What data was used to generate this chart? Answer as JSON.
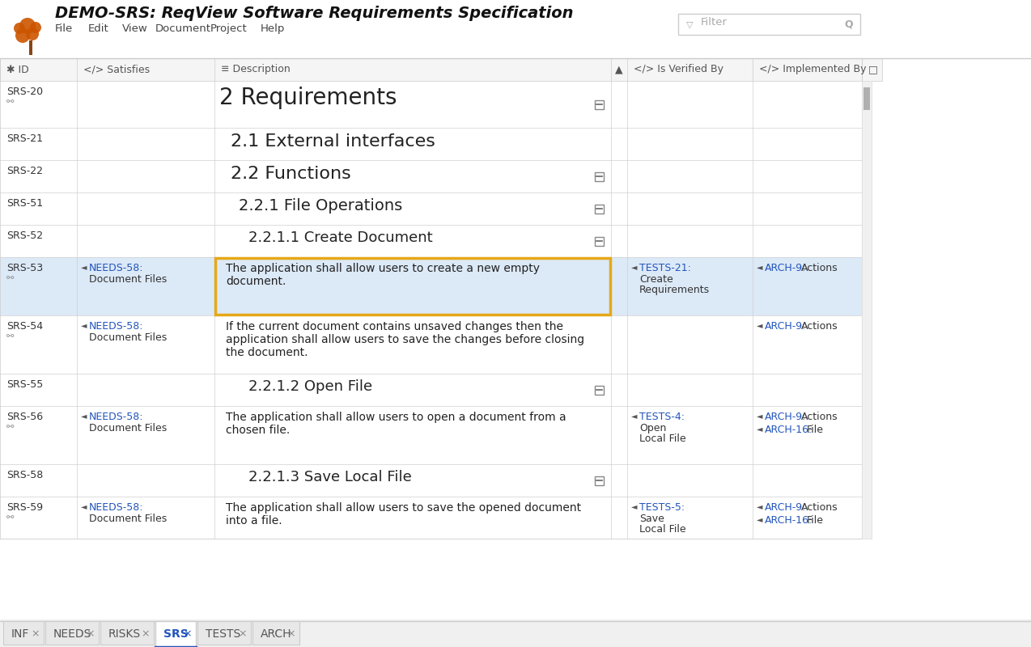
{
  "title": "DEMO-SRS: ReqView Software Requirements Specification",
  "menu_items": [
    "File",
    "Edit",
    "View",
    "Document",
    "Project",
    "Help"
  ],
  "filter_placeholder": "Filter",
  "bg_color": "#ffffff",
  "selected_row_bg": "#dce9f7",
  "selected_cell_border": "#e6a817",
  "grid_color": "#d0d0d0",
  "link_color": "#2255bb",
  "tab_active_color": "#2255bb",
  "orange_color": "#cc5500",
  "header_text_color": "#555555",
  "body_text_color": "#333333",
  "col_starts": [
    0,
    95,
    265,
    755,
    775,
    930,
    1065
  ],
  "col_ends": [
    95,
    265,
    755,
    775,
    930,
    1065,
    1090
  ],
  "header_labels": [
    "✱ ID",
    "</> Satisfies",
    "≡ Description",
    "▲",
    "</> Is Verified By",
    "</> Implemented By",
    "□"
  ],
  "rows": [
    {
      "id": "SRS-20",
      "has_link": true,
      "satisfies": "",
      "satisfies_link": "",
      "description": "2 Requirements",
      "desc_size": "h1",
      "has_collapse": true,
      "verified_by": "",
      "verified_link": "",
      "implemented_by": "",
      "bg": "#ffffff"
    },
    {
      "id": "SRS-21",
      "has_link": false,
      "satisfies": "",
      "satisfies_link": "",
      "description": "2.1 External interfaces",
      "desc_size": "h2",
      "has_collapse": false,
      "verified_by": "",
      "verified_link": "",
      "implemented_by": "",
      "bg": "#ffffff"
    },
    {
      "id": "SRS-22",
      "has_link": false,
      "satisfies": "",
      "satisfies_link": "",
      "description": "2.2 Functions",
      "desc_size": "h2",
      "has_collapse": true,
      "verified_by": "",
      "verified_link": "",
      "implemented_by": "",
      "bg": "#ffffff"
    },
    {
      "id": "SRS-51",
      "has_link": false,
      "satisfies": "",
      "satisfies_link": "",
      "description": "2.2.1 File Operations",
      "desc_size": "h3",
      "has_collapse": true,
      "verified_by": "",
      "verified_link": "",
      "implemented_by": "",
      "bg": "#ffffff"
    },
    {
      "id": "SRS-52",
      "has_link": false,
      "satisfies": "",
      "satisfies_link": "",
      "description": "2.2.1.1 Create Document",
      "desc_size": "h4",
      "has_collapse": true,
      "verified_by": "",
      "verified_link": "",
      "implemented_by": "",
      "bg": "#ffffff"
    },
    {
      "id": "SRS-53",
      "has_link": true,
      "satisfies": "NEEDS-58",
      "satisfies_link": "NEEDS-58",
      "satisfies_suffix": "Document Files",
      "description": "The application shall allow users to create a new empty\ndocument.",
      "desc_size": "normal",
      "has_collapse": false,
      "selected": true,
      "selected_cell": true,
      "verified_by": "TESTS-21",
      "verified_link": "TESTS-21",
      "verified_suffix": "Create\nRequirements",
      "implemented_by_lines": [
        [
          "ARCH-9",
          "Actions"
        ]
      ],
      "bg": "#dce9f7"
    },
    {
      "id": "SRS-54",
      "has_link": true,
      "satisfies": "NEEDS-58",
      "satisfies_link": "NEEDS-58",
      "satisfies_suffix": "Document Files",
      "description": "If the current document contains unsaved changes then the\napplication shall allow users to save the changes before closing\nthe document.",
      "desc_size": "normal",
      "has_collapse": false,
      "verified_by": "",
      "verified_link": "",
      "verified_suffix": "",
      "implemented_by_lines": [
        [
          "ARCH-9",
          "Actions"
        ]
      ],
      "bg": "#ffffff"
    },
    {
      "id": "SRS-55",
      "has_link": false,
      "satisfies": "",
      "satisfies_link": "",
      "description": "2.2.1.2 Open File",
      "desc_size": "h4",
      "has_collapse": true,
      "verified_by": "",
      "verified_link": "",
      "implemented_by": "",
      "bg": "#ffffff"
    },
    {
      "id": "SRS-56",
      "has_link": true,
      "satisfies": "NEEDS-58",
      "satisfies_link": "NEEDS-58",
      "satisfies_suffix": "Document Files",
      "description": "The application shall allow users to open a document from a\nchosen file.",
      "desc_size": "normal",
      "has_collapse": false,
      "verified_by": "TESTS-4",
      "verified_link": "TESTS-4",
      "verified_suffix": "Open\nLocal File",
      "implemented_by_lines": [
        [
          "ARCH-9",
          "Actions"
        ],
        [
          "ARCH-16",
          "File"
        ]
      ],
      "bg": "#ffffff"
    },
    {
      "id": "SRS-58",
      "has_link": false,
      "satisfies": "",
      "satisfies_link": "",
      "description": "2.2.1.3 Save Local File",
      "desc_size": "h4",
      "has_collapse": true,
      "verified_by": "",
      "verified_link": "",
      "implemented_by": "",
      "bg": "#ffffff"
    },
    {
      "id": "SRS-59",
      "has_link": true,
      "satisfies": "NEEDS-58",
      "satisfies_link": "NEEDS-58",
      "satisfies_suffix": "Document Files",
      "description": "The application shall allow users to save the opened document\ninto a file.",
      "desc_size": "normal",
      "has_collapse": false,
      "verified_by": "TESTS-5",
      "verified_link": "TESTS-5",
      "verified_suffix": "Save\nLocal File",
      "implemented_by_lines": [
        [
          "ARCH-9",
          "Actions"
        ],
        [
          "ARCH-16",
          "File"
        ]
      ],
      "bg": "#ffffff",
      "partial": true
    }
  ],
  "tabs": [
    "INF",
    "NEEDS",
    "RISKS",
    "SRS",
    "TESTS",
    "ARCH"
  ],
  "active_tab": "SRS"
}
